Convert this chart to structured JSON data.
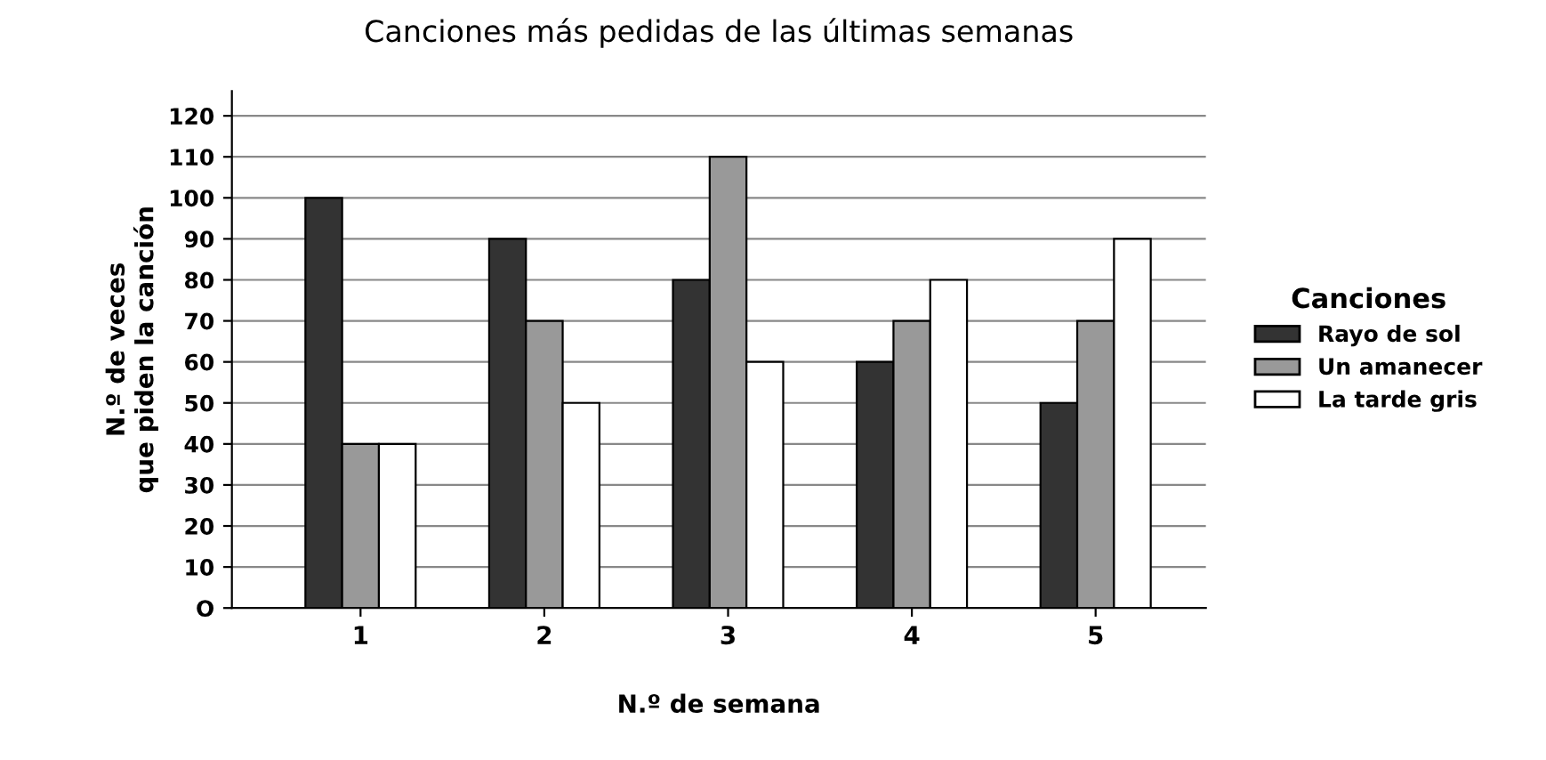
{
  "chart_data": {
    "type": "bar",
    "title": "Canciones más pedidas de las últimas semanas",
    "xlabel": "N.º de semana",
    "ylabel": "N.º de veces\nque piden la canción",
    "legend_title": "Canciones",
    "legend": "right",
    "grid": "y",
    "categories": [
      "1",
      "2",
      "3",
      "4",
      "5"
    ],
    "series": [
      {
        "name": "Rayo de sol",
        "color": "#333333",
        "values": [
          100,
          90,
          80,
          60,
          50
        ]
      },
      {
        "name": "Un amanecer",
        "color": "#999999",
        "values": [
          40,
          70,
          110,
          70,
          70
        ]
      },
      {
        "name": "La tarde gris",
        "color": "#ffffff",
        "values": [
          40,
          50,
          60,
          80,
          90
        ]
      }
    ],
    "ylim": [
      0,
      126
    ],
    "yticks": [
      {
        "value": 0,
        "label": "O"
      },
      10,
      20,
      30,
      40,
      50,
      60,
      70,
      80,
      90,
      100,
      110,
      120
    ]
  }
}
